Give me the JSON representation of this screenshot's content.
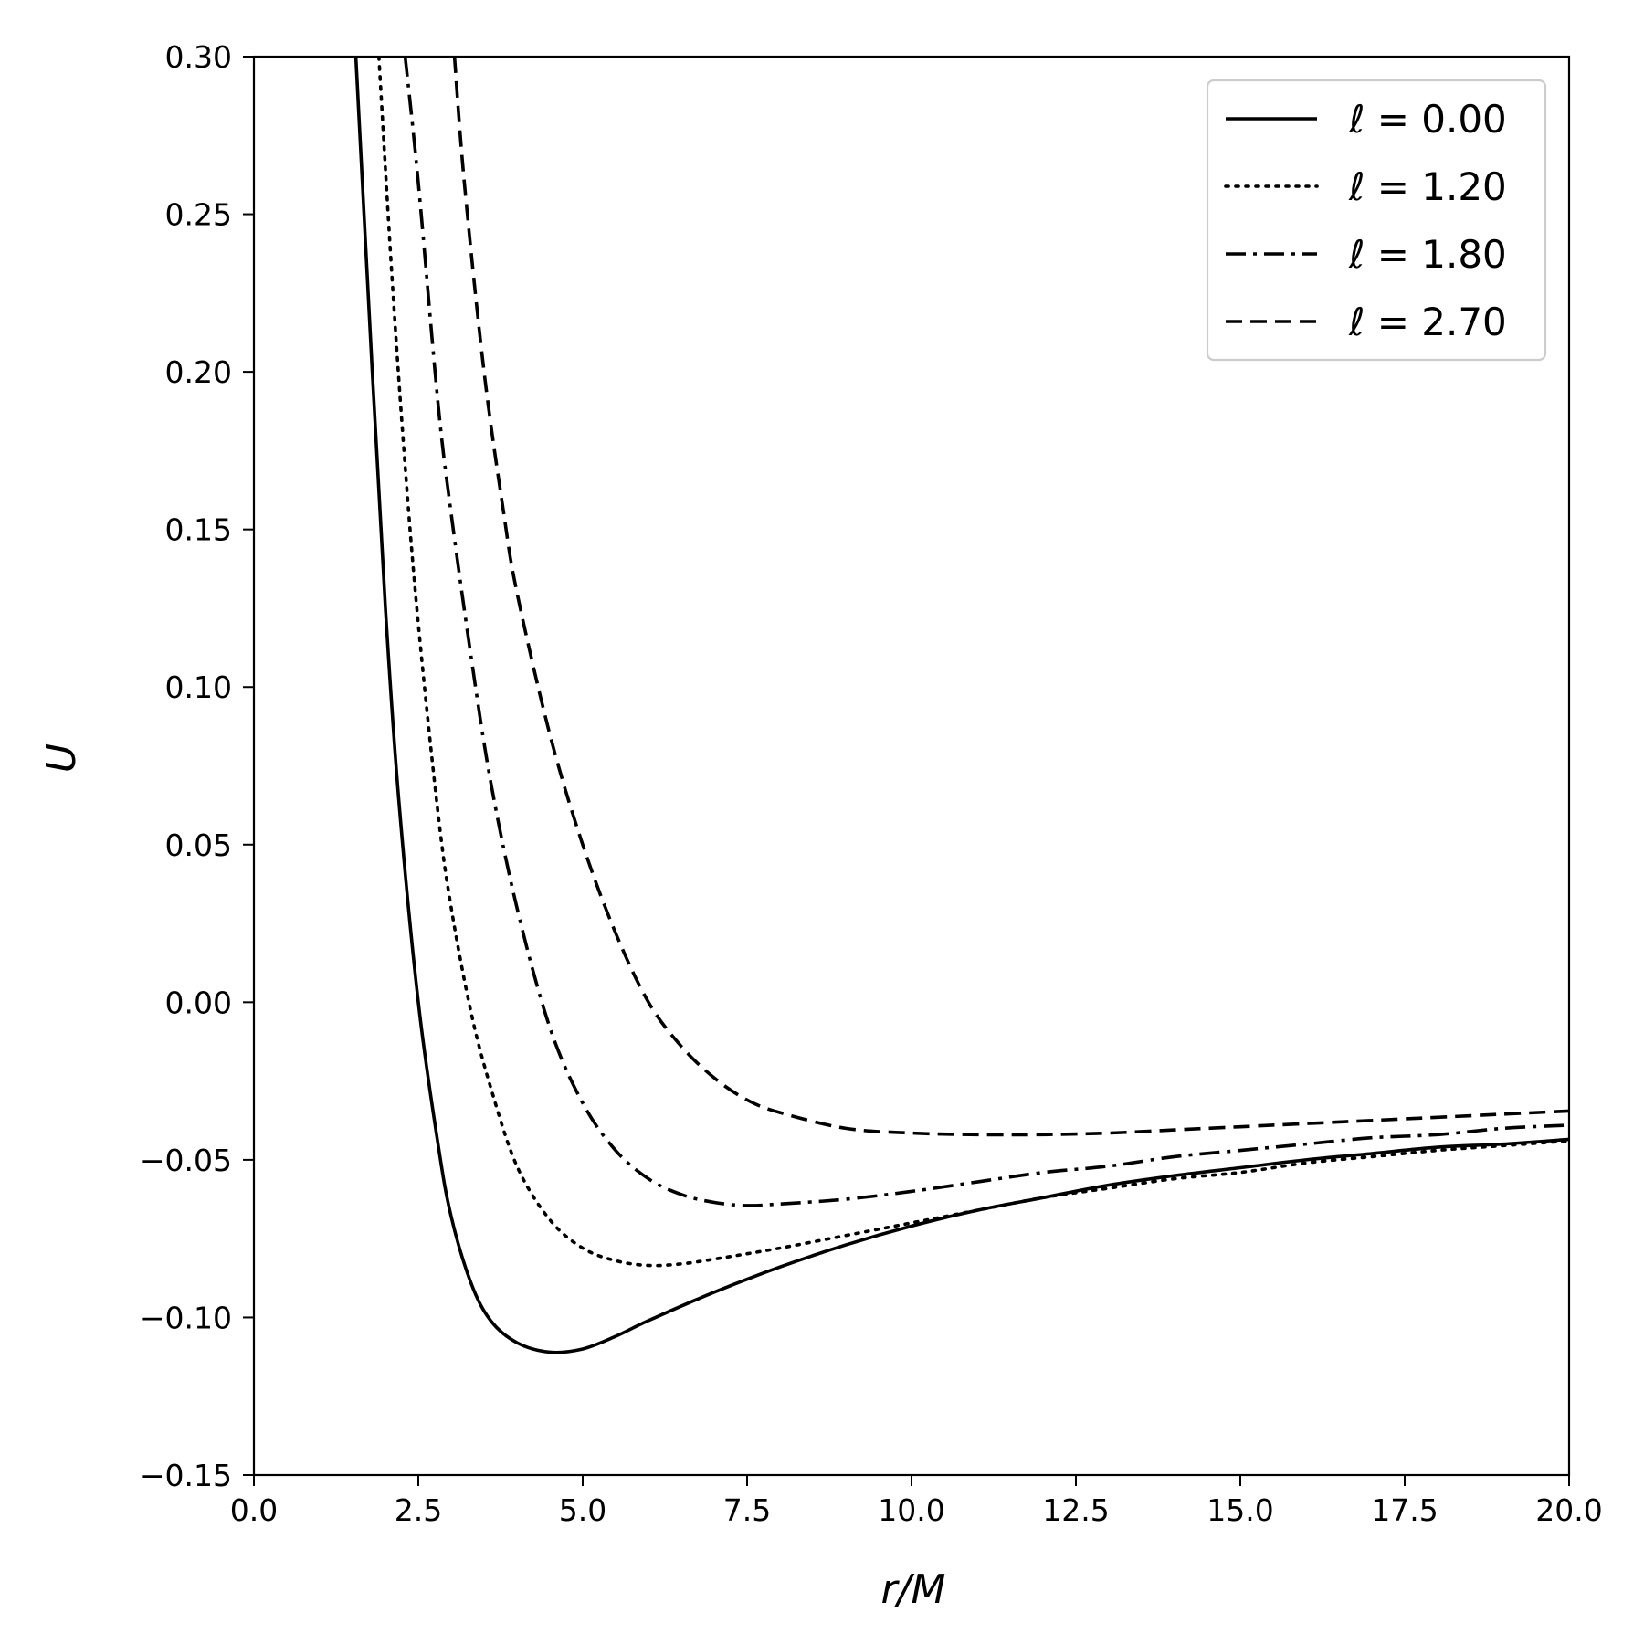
{
  "chart_data": {
    "type": "line",
    "title": "",
    "xlabel": "r/M",
    "ylabel": "U",
    "xlim": [
      0,
      20
    ],
    "ylim": [
      -0.15,
      0.3
    ],
    "xticks": [
      "0.0",
      "2.5",
      "5.0",
      "7.5",
      "10.0",
      "12.5",
      "15.0",
      "17.5",
      "20.0"
    ],
    "yticks": [
      "−0.15",
      "−0.10",
      "−0.05",
      "0.00",
      "0.05",
      "0.10",
      "0.15",
      "0.20",
      "0.25",
      "0.30"
    ],
    "grid": false,
    "legend_position": "top-right",
    "series": [
      {
        "name": "ℓ = 0.00",
        "linestyle": "solid",
        "color": "#000000",
        "x": [
          1.55,
          1.8,
          2.0,
          2.2,
          2.5,
          2.8,
          3.0,
          3.3,
          3.6,
          4.0,
          4.5,
          5.0,
          5.5,
          6.0,
          7.0,
          8.0,
          9.0,
          10.0,
          11.0,
          12.0,
          13.0,
          14.0,
          15.0,
          16.0,
          17.0,
          18.0,
          19.0,
          20.0
        ],
        "y": [
          0.3,
          0.2,
          0.125,
          0.065,
          0.0,
          -0.045,
          -0.068,
          -0.089,
          -0.101,
          -0.108,
          -0.111,
          -0.11,
          -0.106,
          -0.101,
          -0.092,
          -0.084,
          -0.077,
          -0.071,
          -0.066,
          -0.062,
          -0.058,
          -0.055,
          -0.0525,
          -0.05,
          -0.048,
          -0.046,
          -0.045,
          -0.0435
        ]
      },
      {
        "name": "ℓ = 1.20",
        "linestyle": "dotted",
        "color": "#000000",
        "x": [
          1.9,
          2.1,
          2.3,
          2.5,
          2.8,
          3.0,
          3.3,
          3.6,
          4.0,
          4.5,
          5.0,
          5.5,
          6.0,
          6.5,
          7.0,
          8.0,
          9.0,
          10.0,
          11.0,
          12.0,
          13.0,
          14.0,
          15.0,
          16.0,
          17.0,
          18.0,
          19.0,
          20.0
        ],
        "y": [
          0.3,
          0.23,
          0.17,
          0.12,
          0.06,
          0.03,
          -0.003,
          -0.027,
          -0.052,
          -0.069,
          -0.078,
          -0.082,
          -0.0835,
          -0.083,
          -0.0815,
          -0.078,
          -0.074,
          -0.07,
          -0.066,
          -0.062,
          -0.059,
          -0.056,
          -0.054,
          -0.051,
          -0.049,
          -0.047,
          -0.0455,
          -0.044
        ]
      },
      {
        "name": "ℓ = 1.80",
        "linestyle": "dashdot",
        "color": "#000000",
        "x": [
          2.3,
          2.5,
          2.8,
          3.0,
          3.3,
          3.6,
          4.0,
          4.5,
          5.0,
          5.5,
          6.0,
          6.5,
          7.0,
          7.5,
          8.0,
          9.0,
          10.0,
          11.0,
          12.0,
          13.0,
          14.0,
          15.0,
          16.0,
          17.0,
          18.0,
          19.0,
          20.0
        ],
        "y": [
          0.3,
          0.26,
          0.19,
          0.155,
          0.11,
          0.07,
          0.03,
          -0.008,
          -0.032,
          -0.047,
          -0.056,
          -0.061,
          -0.0635,
          -0.0645,
          -0.064,
          -0.0625,
          -0.06,
          -0.057,
          -0.054,
          -0.052,
          -0.049,
          -0.047,
          -0.045,
          -0.043,
          -0.042,
          -0.04,
          -0.039
        ]
      },
      {
        "name": "ℓ = 2.70",
        "linestyle": "dashed",
        "color": "#000000",
        "x": [
          3.05,
          3.2,
          3.5,
          3.8,
          4.0,
          4.5,
          5.0,
          5.5,
          6.0,
          6.5,
          7.0,
          7.5,
          8.0,
          9.0,
          10.0,
          11.0,
          12.0,
          13.0,
          14.0,
          15.0,
          16.0,
          17.0,
          18.0,
          19.0,
          20.0
        ],
        "y": [
          0.3,
          0.26,
          0.2,
          0.155,
          0.13,
          0.085,
          0.05,
          0.022,
          0.0,
          -0.014,
          -0.024,
          -0.031,
          -0.035,
          -0.04,
          -0.0415,
          -0.042,
          -0.042,
          -0.0415,
          -0.0405,
          -0.0395,
          -0.0385,
          -0.0375,
          -0.0365,
          -0.0355,
          -0.0345
        ]
      }
    ]
  }
}
